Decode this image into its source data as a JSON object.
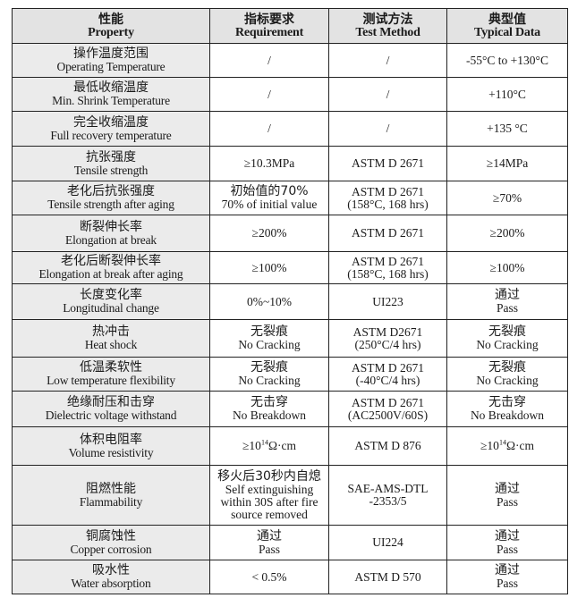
{
  "header": [
    {
      "zh": "性能",
      "en": "Property"
    },
    {
      "zh": "指标要求",
      "en": "Requirement"
    },
    {
      "zh": "测试方法",
      "en": "Test Method"
    },
    {
      "zh": "典型值",
      "en": "Typical Data"
    }
  ],
  "rows": [
    {
      "property": {
        "zh": "操作温度范围",
        "en": "Operating Temperature"
      },
      "requirement": [
        "/"
      ],
      "method": [
        "/"
      ],
      "typical": [
        "-55°C to +130°C"
      ]
    },
    {
      "property": {
        "zh": "最低收缩温度",
        "en": "Min. Shrink Temperature"
      },
      "requirement": [
        "/"
      ],
      "method": [
        "/"
      ],
      "typical": [
        "+110°C"
      ]
    },
    {
      "property": {
        "zh": "完全收缩温度",
        "en": "Full recovery temperature"
      },
      "requirement": [
        "/"
      ],
      "method": [
        "/"
      ],
      "typical": [
        "+135 °C"
      ]
    },
    {
      "property": {
        "zh": "抗张强度",
        "en": "Tensile strength"
      },
      "requirement": [
        "≥10.3MPa"
      ],
      "method": [
        "ASTM D 2671"
      ],
      "typical": [
        "≥14MPa"
      ]
    },
    {
      "property": {
        "zh": "老化后抗张强度",
        "en": "Tensile strength after aging"
      },
      "requirement": [
        "初始值的70%",
        "70% of initial value"
      ],
      "method": [
        "ASTM D 2671",
        "(158°C, 168 hrs)"
      ],
      "typical": [
        "≥70%"
      ]
    },
    {
      "property": {
        "zh": "断裂伸长率",
        "en": "Elongation at break"
      },
      "requirement": [
        "≥200%"
      ],
      "method": [
        "ASTM D 2671"
      ],
      "typical": [
        "≥200%"
      ]
    },
    {
      "property": {
        "zh": "老化后断裂伸长率",
        "en": "Elongation at break after aging"
      },
      "requirement": [
        "≥100%"
      ],
      "method": [
        "ASTM D 2671",
        "(158°C, 168 hrs)"
      ],
      "typical": [
        "≥100%"
      ]
    },
    {
      "property": {
        "zh": "长度变化率",
        "en": "Longitudinal change"
      },
      "requirement": [
        "0%~10%"
      ],
      "method": [
        "UI223"
      ],
      "typical": [
        "通过",
        "Pass"
      ]
    },
    {
      "property": {
        "zh": "热冲击",
        "en": "Heat shock"
      },
      "requirement": [
        "无裂痕",
        "No Cracking"
      ],
      "method": [
        "ASTM D2671",
        "(250°C/4 hrs)"
      ],
      "typical": [
        "无裂痕",
        "No Cracking"
      ]
    },
    {
      "property": {
        "zh": "低温柔软性",
        "en": "Low temperature flexibility"
      },
      "requirement": [
        "无裂痕",
        "No Cracking"
      ],
      "method": [
        "ASTM D 2671",
        "(-40°C/4 hrs)"
      ],
      "typical": [
        "无裂痕",
        "No Cracking"
      ]
    },
    {
      "property": {
        "zh": "绝缘耐压和击穿",
        "en": "Dielectric voltage withstand"
      },
      "requirement": [
        "无击穿",
        "No Breakdown"
      ],
      "method": [
        "ASTM D 2671",
        "(AC2500V/60S)"
      ],
      "typical": [
        "无击穿",
        "No Breakdown"
      ]
    },
    {
      "property": {
        "zh": "体积电阻率",
        "en": "Volume resistivity"
      },
      "requirement": [
        {
          "base": "≥10",
          "sup": "14",
          "unit": "Ω·cm"
        }
      ],
      "method": [
        "ASTM D 876"
      ],
      "typical": [
        {
          "base": "≥10",
          "sup": "14",
          "unit": "Ω·cm"
        }
      ]
    },
    {
      "property": {
        "zh": "阻燃性能",
        "en": "Flammability"
      },
      "requirement": [
        "移火后30秒内自熄",
        "Self extinguishing",
        "within 30S after fire",
        "source removed"
      ],
      "method": [
        "SAE-AMS-DTL",
        "-2353/5"
      ],
      "typical": [
        "通过",
        "Pass"
      ]
    },
    {
      "property": {
        "zh": "铜腐蚀性",
        "en": "Copper corrosion"
      },
      "requirement": [
        "通过",
        "Pass"
      ],
      "method": [
        "UI224"
      ],
      "typical": [
        "通过",
        "Pass"
      ]
    },
    {
      "property": {
        "zh": "吸水性",
        "en": "Water absorption"
      },
      "requirement": [
        "< 0.5%"
      ],
      "method": [
        "ASTM D 570"
      ],
      "typical": [
        "通过",
        "Pass"
      ]
    }
  ]
}
